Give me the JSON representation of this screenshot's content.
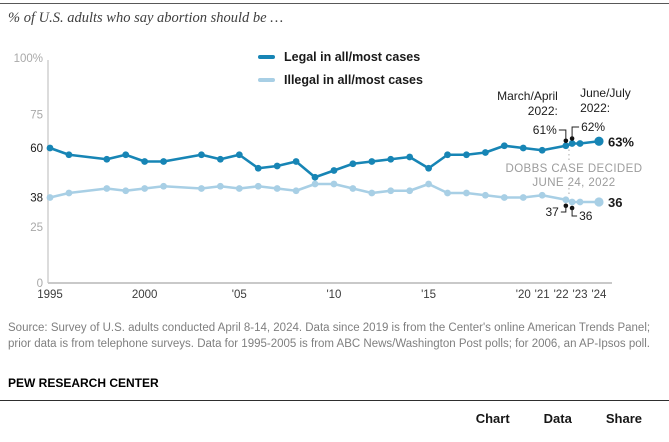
{
  "header": {
    "title": "% of U.S. adults who say abortion should be …"
  },
  "chart_data": {
    "type": "line",
    "title": "% of U.S. adults who say abortion should be …",
    "legend_position": "top",
    "grid": false,
    "x_axis": {
      "range": [
        1995,
        2024
      ],
      "ticks": [
        {
          "year": 1995,
          "label": "1995"
        },
        {
          "year": 2000,
          "label": "2000"
        },
        {
          "year": 2005,
          "label": "'05"
        },
        {
          "year": 2010,
          "label": "'10"
        },
        {
          "year": 2015,
          "label": "'15"
        },
        {
          "year": 2020,
          "label": "'20"
        },
        {
          "year": 2021,
          "label": "'21"
        },
        {
          "year": 2022,
          "label": "'22"
        },
        {
          "year": 2023,
          "label": "'23"
        },
        {
          "year": 2024,
          "label": "'24"
        }
      ]
    },
    "y_axis": {
      "range": [
        0,
        100
      ],
      "ticks": [
        {
          "value": 100,
          "label": "100%",
          "emphasis": false
        },
        {
          "value": 75,
          "label": "75",
          "emphasis": false
        },
        {
          "value": 60,
          "label": "60",
          "emphasis": true
        },
        {
          "value": 38,
          "label": "38",
          "emphasis": true
        },
        {
          "value": 25,
          "label": "25",
          "emphasis": false
        },
        {
          "value": 0,
          "label": "0",
          "emphasis": false
        }
      ]
    },
    "series": [
      {
        "name": "Legal in all/most cases",
        "color": "#1785b5",
        "points": [
          [
            1995,
            60
          ],
          [
            1996,
            57
          ],
          [
            1998,
            55
          ],
          [
            1999,
            57
          ],
          [
            2000,
            54
          ],
          [
            2001,
            54
          ],
          [
            2003,
            57
          ],
          [
            2004,
            55
          ],
          [
            2005,
            57
          ],
          [
            2006,
            51
          ],
          [
            2007,
            52
          ],
          [
            2008,
            54
          ],
          [
            2009,
            47
          ],
          [
            2010,
            50
          ],
          [
            2011,
            53
          ],
          [
            2012,
            54
          ],
          [
            2013,
            55
          ],
          [
            2014,
            56
          ],
          [
            2015,
            51
          ],
          [
            2016,
            57
          ],
          [
            2017,
            57
          ],
          [
            2018,
            58
          ],
          [
            2019,
            61
          ],
          [
            2020,
            60
          ],
          [
            2021,
            59
          ],
          [
            2022.25,
            61
          ],
          [
            2022.58,
            62
          ],
          [
            2023,
            62
          ],
          [
            2024,
            63
          ]
        ]
      },
      {
        "name": "Illegal in all/most cases",
        "color": "#a8cfe5",
        "points": [
          [
            1995,
            38
          ],
          [
            1996,
            40
          ],
          [
            1998,
            42
          ],
          [
            1999,
            41
          ],
          [
            2000,
            42
          ],
          [
            2001,
            43
          ],
          [
            2003,
            42
          ],
          [
            2004,
            43
          ],
          [
            2005,
            42
          ],
          [
            2006,
            43
          ],
          [
            2007,
            42
          ],
          [
            2008,
            41
          ],
          [
            2009,
            44
          ],
          [
            2010,
            44
          ],
          [
            2011,
            42
          ],
          [
            2012,
            40
          ],
          [
            2013,
            41
          ],
          [
            2014,
            41
          ],
          [
            2015,
            44
          ],
          [
            2016,
            40
          ],
          [
            2017,
            40
          ],
          [
            2018,
            39
          ],
          [
            2019,
            38
          ],
          [
            2020,
            38
          ],
          [
            2021,
            39
          ],
          [
            2022.25,
            37
          ],
          [
            2022.58,
            36
          ],
          [
            2023,
            36
          ],
          [
            2024,
            36
          ]
        ]
      }
    ],
    "annotations": {
      "march_april": {
        "label_line1": "March/April",
        "label_line2": "2022:",
        "value_label": "61%",
        "x": 2022.25,
        "legal_value": 61,
        "illegal_value": 37,
        "illegal_label": "37"
      },
      "june_july": {
        "label_line1": "June/July",
        "label_line2": "2022:",
        "value_label": "62%",
        "x": 2022.58,
        "legal_value": 62,
        "illegal_value": 36,
        "illegal_label": "36"
      },
      "dobbs": {
        "line1": "DOBBS CASE DECIDED",
        "line2": "JUNE 24, 2022"
      },
      "end_labels": {
        "legal": "63%",
        "illegal": "36"
      }
    }
  },
  "footer": {
    "source": "Source: Survey of U.S. adults conducted April 8-14, 2024. Data since 2019 is from the Center's online American Trends Panel; prior data is from telephone surveys. Data for 1995-2005 is from ABC News/Washington Post polls; for 2006, an AP-Ipsos poll.",
    "brand": "PEW RESEARCH CENTER"
  },
  "toolbar": {
    "tabs": [
      {
        "label": "Chart",
        "active": true
      },
      {
        "label": "Data",
        "active": false
      },
      {
        "label": "Share",
        "active": false
      }
    ]
  }
}
